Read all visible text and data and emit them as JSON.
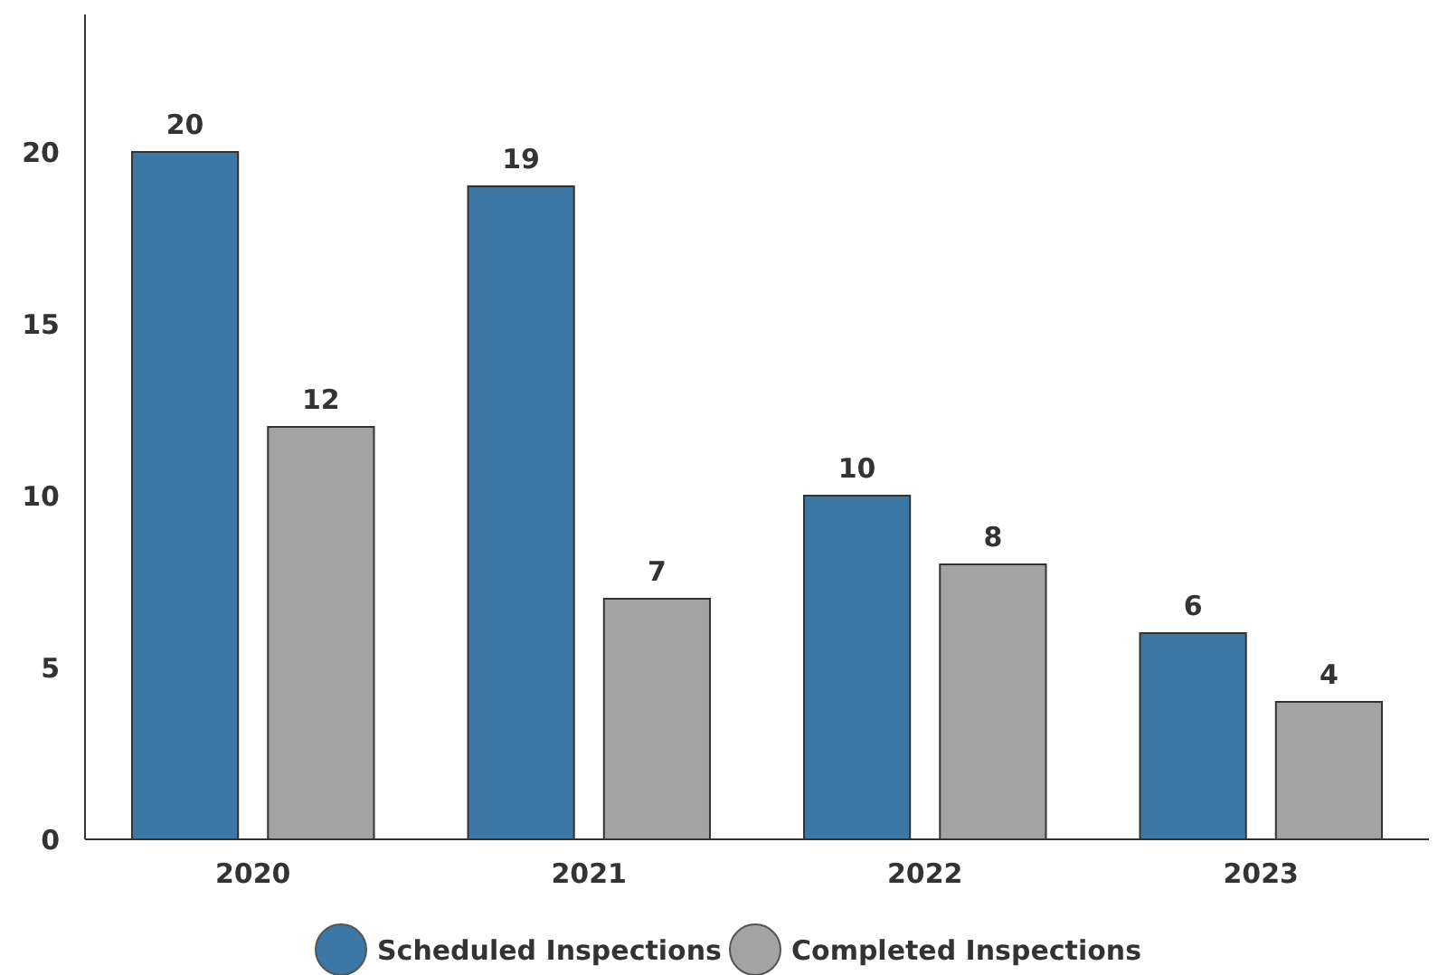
{
  "chart_data": {
    "type": "bar",
    "categories": [
      "2020",
      "2021",
      "2022",
      "2023"
    ],
    "series": [
      {
        "name": "Scheduled Inspections",
        "color": "#3b78a6",
        "values": [
          20,
          19,
          10,
          6
        ]
      },
      {
        "name": "Completed Inspections",
        "color": "#a3a3a3",
        "values": [
          12,
          7,
          8,
          4
        ]
      }
    ],
    "ylim": [
      0,
      24
    ],
    "yticks": [
      0,
      5,
      10,
      15,
      20
    ],
    "data_labels": true,
    "legend": "bottom",
    "grid": false
  }
}
